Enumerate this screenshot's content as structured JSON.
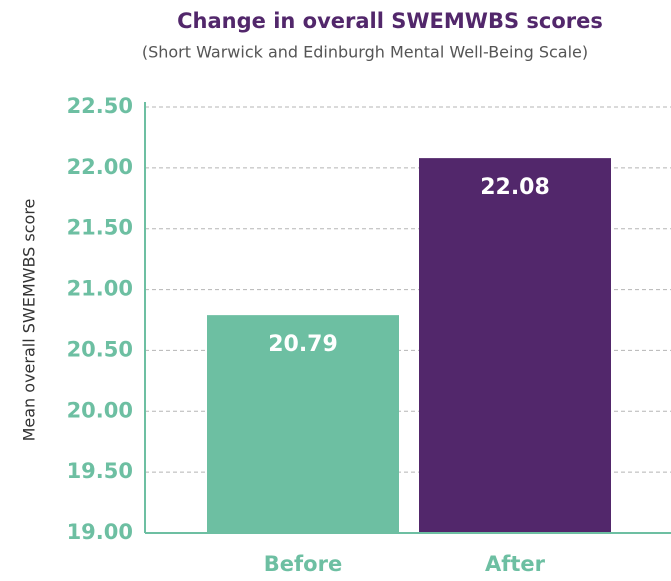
{
  "chart_data": {
    "type": "bar",
    "title": "Change in overall SWEMWBS scores",
    "subtitle": "(Short Warwick and Edinburgh Mental Well-Being Scale)",
    "y_label": "Mean overall SWEMWBS score",
    "categories": [
      "Before",
      "After"
    ],
    "values": [
      20.79,
      22.08
    ],
    "colors": [
      "#6dbfa2",
      "#52276b"
    ],
    "ylim": [
      19,
      22.5
    ],
    "yticks": [
      {
        "value": 19,
        "label": "19.00"
      },
      {
        "value": 19.5,
        "label": "19.50"
      },
      {
        "value": 20,
        "label": "20.00"
      },
      {
        "value": 20.5,
        "label": "20.50"
      },
      {
        "value": 21,
        "label": "21.00"
      },
      {
        "value": 21.5,
        "label": "21.50"
      },
      {
        "value": 22,
        "label": "22.00"
      },
      {
        "value": 22.5,
        "label": "22.50"
      }
    ],
    "grid": true
  }
}
